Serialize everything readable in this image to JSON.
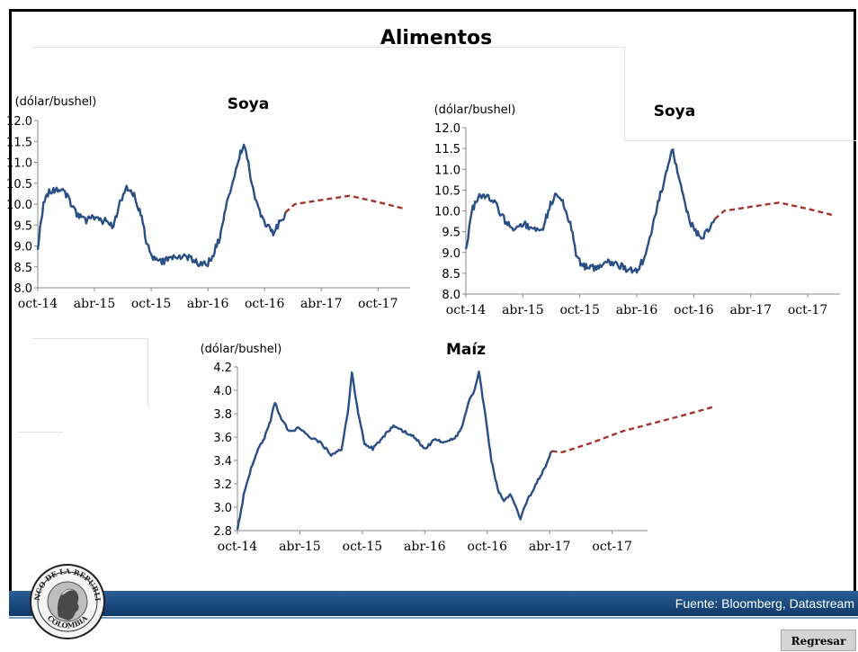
{
  "page": {
    "title": "Alimentos"
  },
  "footer": {
    "source": "Fuente: Bloomberg, Datastream",
    "back_label": "Regresar"
  },
  "logo": {
    "top_text": "BANCO DE LA REPUBLICA",
    "bottom_text": "COLOMBIA"
  },
  "colors": {
    "history": "#2a4f86",
    "forecast": "#a3342f",
    "footer": "#1d4e86"
  },
  "chart_data": [
    {
      "type": "line",
      "title": "Soya",
      "ylabel": "(dólar/bushel)",
      "ylim": [
        8.0,
        12.0
      ],
      "yticks": [
        "8.0",
        "8.5",
        "9.0",
        "9.5",
        "10.0",
        "10.5",
        "11.0",
        "11.5",
        "12.0"
      ],
      "xticks": [
        "oct-14",
        "abr-15",
        "oct-15",
        "abr-16",
        "oct-16",
        "abr-17",
        "oct-17"
      ],
      "grid": false,
      "series": [
        {
          "style": "solid",
          "points": [
            [
              0,
              9.0
            ],
            [
              0.3,
              10.0
            ],
            [
              0.6,
              10.3
            ],
            [
              1.0,
              10.35
            ],
            [
              1.5,
              10.25
            ],
            [
              2.0,
              9.8
            ],
            [
              2.5,
              9.6
            ],
            [
              3.0,
              9.7
            ],
            [
              3.5,
              9.6
            ],
            [
              4.0,
              9.5
            ],
            [
              4.4,
              10.1
            ],
            [
              4.7,
              10.4
            ],
            [
              5.1,
              10.2
            ],
            [
              5.5,
              9.7
            ],
            [
              5.8,
              9.0
            ],
            [
              6.1,
              8.7
            ],
            [
              6.5,
              8.6
            ],
            [
              7.0,
              8.7
            ],
            [
              7.5,
              8.75
            ],
            [
              8.0,
              8.7
            ],
            [
              8.5,
              8.6
            ],
            [
              9.0,
              8.6
            ],
            [
              9.3,
              8.8
            ],
            [
              9.7,
              9.3
            ],
            [
              10.0,
              10.0
            ],
            [
              10.3,
              10.5
            ],
            [
              10.6,
              11.0
            ],
            [
              10.9,
              11.5
            ],
            [
              11.2,
              10.8
            ],
            [
              11.5,
              10.2
            ],
            [
              11.8,
              9.7
            ],
            [
              12.1,
              9.5
            ],
            [
              12.4,
              9.3
            ],
            [
              12.7,
              9.5
            ],
            [
              13.0,
              9.7
            ],
            [
              13.1,
              9.8
            ]
          ]
        },
        {
          "style": "dashed",
          "points": [
            [
              13.1,
              9.8
            ],
            [
              13.6,
              10.0
            ],
            [
              15.0,
              10.1
            ],
            [
              16.5,
              10.2
            ],
            [
              18.0,
              10.05
            ],
            [
              19.3,
              9.9
            ]
          ]
        }
      ]
    },
    {
      "type": "line",
      "title": "Soya",
      "ylabel": "(dólar/bushel)",
      "ylim": [
        8.0,
        12.0
      ],
      "yticks": [
        "8.0",
        "8.5",
        "9.0",
        "9.5",
        "10.0",
        "10.5",
        "11.0",
        "11.5",
        "12.0"
      ],
      "xticks": [
        "oct-14",
        "abr-15",
        "oct-15",
        "abr-16",
        "oct-16",
        "abr-17",
        "oct-17"
      ],
      "grid": false,
      "series": [
        {
          "style": "solid",
          "points": [
            [
              0,
              9.0
            ],
            [
              0.3,
              10.0
            ],
            [
              0.6,
              10.3
            ],
            [
              1.0,
              10.35
            ],
            [
              1.5,
              10.25
            ],
            [
              2.0,
              9.8
            ],
            [
              2.5,
              9.6
            ],
            [
              3.0,
              9.7
            ],
            [
              3.5,
              9.6
            ],
            [
              4.0,
              9.5
            ],
            [
              4.4,
              10.1
            ],
            [
              4.7,
              10.4
            ],
            [
              5.1,
              10.2
            ],
            [
              5.5,
              9.7
            ],
            [
              5.8,
              9.0
            ],
            [
              6.1,
              8.7
            ],
            [
              6.5,
              8.6
            ],
            [
              7.0,
              8.7
            ],
            [
              7.5,
              8.75
            ],
            [
              8.0,
              8.7
            ],
            [
              8.5,
              8.6
            ],
            [
              9.0,
              8.6
            ],
            [
              9.3,
              8.8
            ],
            [
              9.7,
              9.3
            ],
            [
              10.0,
              10.0
            ],
            [
              10.3,
              10.5
            ],
            [
              10.6,
              11.0
            ],
            [
              10.9,
              11.5
            ],
            [
              11.2,
              10.8
            ],
            [
              11.5,
              10.2
            ],
            [
              11.8,
              9.7
            ],
            [
              12.1,
              9.5
            ],
            [
              12.4,
              9.3
            ],
            [
              12.7,
              9.5
            ],
            [
              13.0,
              9.7
            ],
            [
              13.1,
              9.8
            ]
          ]
        },
        {
          "style": "dashed",
          "points": [
            [
              13.1,
              9.8
            ],
            [
              13.6,
              10.0
            ],
            [
              15.0,
              10.1
            ],
            [
              16.5,
              10.2
            ],
            [
              18.0,
              10.05
            ],
            [
              19.3,
              9.9
            ]
          ]
        }
      ]
    },
    {
      "type": "line",
      "title": "Maíz",
      "ylabel": "(dólar/bushel)",
      "ylim": [
        2.8,
        4.2
      ],
      "yticks": [
        "2.8",
        "3.0",
        "3.2",
        "3.4",
        "3.6",
        "3.8",
        "4.0",
        "4.2"
      ],
      "xticks": [
        "oct-14",
        "abr-15",
        "oct-15",
        "abr-16",
        "oct-16",
        "abr-17",
        "oct-17"
      ],
      "grid": false,
      "series": [
        {
          "style": "solid",
          "points": [
            [
              0,
              2.8
            ],
            [
              0.3,
              3.1
            ],
            [
              0.6,
              3.3
            ],
            [
              1.0,
              3.5
            ],
            [
              1.3,
              3.6
            ],
            [
              1.6,
              3.75
            ],
            [
              1.8,
              3.9
            ],
            [
              2.1,
              3.75
            ],
            [
              2.5,
              3.65
            ],
            [
              3.0,
              3.68
            ],
            [
              3.5,
              3.6
            ],
            [
              4.0,
              3.55
            ],
            [
              4.5,
              3.45
            ],
            [
              5.0,
              3.5
            ],
            [
              5.3,
              3.8
            ],
            [
              5.5,
              4.15
            ],
            [
              5.8,
              3.8
            ],
            [
              6.1,
              3.55
            ],
            [
              6.5,
              3.5
            ],
            [
              7.0,
              3.6
            ],
            [
              7.5,
              3.7
            ],
            [
              8.0,
              3.65
            ],
            [
              8.5,
              3.6
            ],
            [
              9.0,
              3.5
            ],
            [
              9.5,
              3.58
            ],
            [
              10.0,
              3.55
            ],
            [
              10.5,
              3.6
            ],
            [
              10.8,
              3.7
            ],
            [
              11.1,
              3.9
            ],
            [
              11.4,
              4.0
            ],
            [
              11.6,
              4.15
            ],
            [
              11.9,
              3.8
            ],
            [
              12.2,
              3.4
            ],
            [
              12.5,
              3.15
            ],
            [
              12.8,
              3.05
            ],
            [
              13.1,
              3.1
            ],
            [
              13.4,
              3.0
            ],
            [
              13.6,
              2.9
            ],
            [
              13.9,
              3.05
            ],
            [
              14.2,
              3.15
            ],
            [
              14.5,
              3.25
            ],
            [
              14.8,
              3.35
            ],
            [
              15.1,
              3.48
            ]
          ]
        },
        {
          "style": "dashed",
          "points": [
            [
              15.1,
              3.48
            ],
            [
              15.6,
              3.47
            ],
            [
              17.0,
              3.55
            ],
            [
              18.5,
              3.65
            ],
            [
              20.0,
              3.72
            ],
            [
              21.5,
              3.79
            ],
            [
              22.9,
              3.86
            ]
          ]
        }
      ]
    }
  ]
}
